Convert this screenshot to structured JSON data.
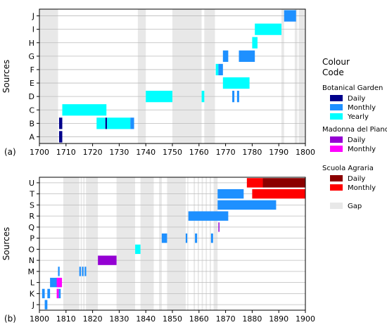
{
  "colors": {
    "bg_daily": "#00008b",
    "bg_monthly": "#1e90ff",
    "bg_yearly": "#00ffff",
    "mp_daily": "#9400d3",
    "mp_monthly": "#ff00ff",
    "sa_daily": "#8b0000",
    "sa_monthly": "#ff0000",
    "gap": "#e8e8e8",
    "grid": "#bbbbbb"
  },
  "legend": {
    "title_line1": "Colour",
    "title_line2": "Code",
    "groups": [
      {
        "title": "Botanical Garden",
        "items": [
          {
            "label": "Daily",
            "color_key": "bg_daily"
          },
          {
            "label": "Monthly",
            "color_key": "bg_monthly"
          },
          {
            "label": "Yearly",
            "color_key": "bg_yearly"
          }
        ]
      },
      {
        "title": "Madonna del Piano",
        "items": [
          {
            "label": "Daily",
            "color_key": "mp_daily"
          },
          {
            "label": "Monthly",
            "color_key": "mp_monthly"
          }
        ]
      },
      {
        "title": "Scuola Agraria",
        "items": [
          {
            "label": "Daily",
            "color_key": "sa_daily"
          },
          {
            "label": "Monthly",
            "color_key": "sa_monthly"
          }
        ]
      },
      {
        "title": "",
        "items": [
          {
            "label": "Gap",
            "color_key": "gap"
          }
        ]
      }
    ]
  },
  "chart_data": [
    {
      "type": "timeline",
      "panel_label": "(a)",
      "ylabel": "Sources",
      "xlim": [
        1700,
        1800
      ],
      "xticks": [
        1700,
        1710,
        1720,
        1730,
        1740,
        1750,
        1760,
        1770,
        1780,
        1790,
        1800
      ],
      "categories": [
        "A",
        "B",
        "C",
        "D",
        "E",
        "F",
        "G",
        "H",
        "I",
        "J"
      ],
      "gaps": [
        [
          1700,
          1707
        ],
        [
          1737,
          1740
        ],
        [
          1750,
          1761
        ],
        [
          1762,
          1766
        ],
        [
          1791,
          1792
        ],
        [
          1796,
          1797
        ],
        [
          1797.5,
          1800
        ]
      ],
      "bars": [
        {
          "row": "A",
          "start": 1707.4,
          "end": 1708.6,
          "color_key": "bg_daily"
        },
        {
          "row": "B",
          "start": 1707.4,
          "end": 1708.6,
          "color_key": "bg_daily"
        },
        {
          "row": "B",
          "start": 1721.5,
          "end": 1724.8,
          "color_key": "bg_yearly"
        },
        {
          "row": "B",
          "start": 1724.8,
          "end": 1725.4,
          "color_key": "bg_daily"
        },
        {
          "row": "B",
          "start": 1725.4,
          "end": 1734.2,
          "color_key": "bg_yearly"
        },
        {
          "row": "B",
          "start": 1734.2,
          "end": 1735.6,
          "color_key": "bg_monthly"
        },
        {
          "row": "C",
          "start": 1708.6,
          "end": 1725.2,
          "color_key": "bg_yearly"
        },
        {
          "row": "D",
          "start": 1740.0,
          "end": 1750.0,
          "color_key": "bg_yearly"
        },
        {
          "row": "D",
          "start": 1761.0,
          "end": 1762.0,
          "color_key": "bg_yearly"
        },
        {
          "row": "D",
          "start": 1772.5,
          "end": 1773.3,
          "color_key": "bg_monthly"
        },
        {
          "row": "D",
          "start": 1774.3,
          "end": 1775.1,
          "color_key": "bg_monthly"
        },
        {
          "row": "E",
          "start": 1769.0,
          "end": 1779.0,
          "color_key": "bg_yearly"
        },
        {
          "row": "F",
          "start": 1766.3,
          "end": 1767.3,
          "color_key": "bg_yearly"
        },
        {
          "row": "F",
          "start": 1767.3,
          "end": 1769.0,
          "color_key": "bg_monthly"
        },
        {
          "row": "G",
          "start": 1769.0,
          "end": 1771.0,
          "color_key": "bg_monthly"
        },
        {
          "row": "G",
          "start": 1775.0,
          "end": 1781.0,
          "color_key": "bg_monthly"
        },
        {
          "row": "H",
          "start": 1780.0,
          "end": 1782.0,
          "color_key": "bg_yearly"
        },
        {
          "row": "I",
          "start": 1781.0,
          "end": 1791.0,
          "color_key": "bg_yearly"
        },
        {
          "row": "J",
          "start": 1792.0,
          "end": 1796.5,
          "color_key": "bg_monthly"
        }
      ]
    },
    {
      "type": "timeline",
      "panel_label": "(b)",
      "ylabel": "Sources",
      "xlim": [
        1800,
        1900
      ],
      "xticks": [
        1800,
        1810,
        1820,
        1830,
        1840,
        1850,
        1860,
        1870,
        1880,
        1890,
        1900
      ],
      "categories": [
        "J",
        "K",
        "L",
        "M",
        "N",
        "O",
        "P",
        "Q",
        "R",
        "S",
        "T",
        "U"
      ],
      "gaps": [
        [
          1809,
          1815
        ],
        [
          1815.5,
          1816
        ],
        [
          1816.5,
          1817
        ],
        [
          1817.5,
          1822
        ],
        [
          1829,
          1836
        ],
        [
          1838,
          1843
        ],
        [
          1845,
          1846
        ],
        [
          1848,
          1855
        ],
        [
          1855.6,
          1856
        ],
        [
          1858,
          1858.5
        ],
        [
          1859.5,
          1860
        ],
        [
          1861,
          1861.5
        ],
        [
          1862.5,
          1863
        ],
        [
          1864,
          1864.5
        ],
        [
          1865.5,
          1867
        ]
      ],
      "bars": [
        {
          "row": "J",
          "start": 1802.0,
          "end": 1803.0,
          "color_key": "bg_monthly"
        },
        {
          "row": "K",
          "start": 1801.0,
          "end": 1802.0,
          "color_key": "bg_monthly"
        },
        {
          "row": "K",
          "start": 1803.0,
          "end": 1804.0,
          "color_key": "bg_monthly"
        },
        {
          "row": "K",
          "start": 1806.5,
          "end": 1807.3,
          "color_key": "mp_monthly"
        },
        {
          "row": "K",
          "start": 1807.3,
          "end": 1808.0,
          "color_key": "bg_monthly"
        },
        {
          "row": "L",
          "start": 1804.0,
          "end": 1808.0,
          "color_key": "bg_monthly"
        },
        {
          "row": "L",
          "start": 1806.5,
          "end": 1807.5,
          "color_key": "mp_monthly"
        },
        {
          "row": "L",
          "start": 1807.5,
          "end": 1808.5,
          "color_key": "mp_monthly"
        },
        {
          "row": "M",
          "start": 1807.0,
          "end": 1807.6,
          "color_key": "bg_monthly"
        },
        {
          "row": "M",
          "start": 1815.0,
          "end": 1815.6,
          "color_key": "bg_monthly"
        },
        {
          "row": "M",
          "start": 1816.0,
          "end": 1816.6,
          "color_key": "bg_monthly"
        },
        {
          "row": "M",
          "start": 1817.0,
          "end": 1817.6,
          "color_key": "bg_monthly"
        },
        {
          "row": "N",
          "start": 1822.0,
          "end": 1829.0,
          "color_key": "mp_daily"
        },
        {
          "row": "O",
          "start": 1836.0,
          "end": 1838.0,
          "color_key": "bg_yearly"
        },
        {
          "row": "P",
          "start": 1846.0,
          "end": 1848.0,
          "color_key": "bg_monthly"
        },
        {
          "row": "P",
          "start": 1855.0,
          "end": 1855.6,
          "color_key": "bg_monthly"
        },
        {
          "row": "P",
          "start": 1858.5,
          "end": 1859.3,
          "color_key": "bg_monthly"
        },
        {
          "row": "P",
          "start": 1864.5,
          "end": 1865.3,
          "color_key": "bg_monthly"
        },
        {
          "row": "Q",
          "start": 1867.3,
          "end": 1867.7,
          "color_key": "mp_daily"
        },
        {
          "row": "R",
          "start": 1856.0,
          "end": 1871.0,
          "color_key": "bg_monthly"
        },
        {
          "row": "S",
          "start": 1867.0,
          "end": 1889.0,
          "color_key": "bg_monthly"
        },
        {
          "row": "T",
          "start": 1867.0,
          "end": 1876.8,
          "color_key": "bg_monthly"
        },
        {
          "row": "T",
          "start": 1880.0,
          "end": 1900.0,
          "color_key": "sa_monthly"
        },
        {
          "row": "U",
          "start": 1878.0,
          "end": 1884.0,
          "color_key": "sa_monthly"
        },
        {
          "row": "U",
          "start": 1884.0,
          "end": 1900.0,
          "color_key": "sa_daily"
        }
      ]
    }
  ]
}
